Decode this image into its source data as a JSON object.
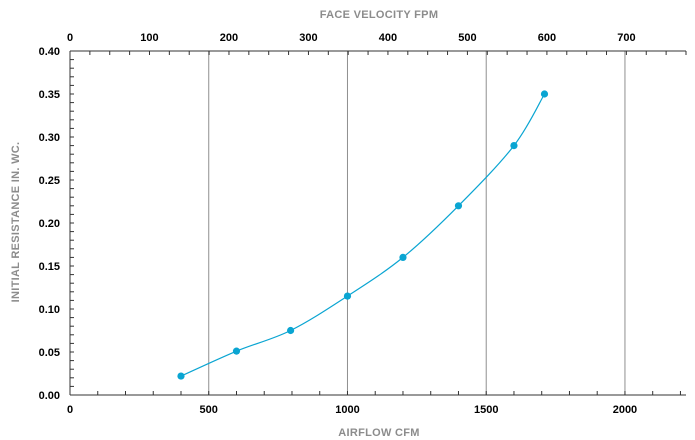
{
  "chart_data": {
    "type": "line",
    "xlabel": "AIRFLOW CFM",
    "x2label": "FACE VELOCITY FPM",
    "ylabel": "INITIAL RESISTANCE IN. WC.",
    "xlim": [
      0,
      2220
    ],
    "ylim": [
      0,
      0.4
    ],
    "x2lim": [
      0,
      775
    ],
    "x_ticks": [
      0,
      500,
      1000,
      1500,
      2000
    ],
    "x_tick_labels": [
      "0",
      "500",
      "1000",
      "1500",
      "2000"
    ],
    "x2_ticks": [
      0,
      100,
      200,
      300,
      400,
      500,
      600,
      700
    ],
    "x2_tick_labels": [
      "0",
      "100",
      "200",
      "300",
      "400",
      "500",
      "600",
      "700"
    ],
    "y_ticks": [
      0,
      0.05,
      0.1,
      0.15,
      0.2,
      0.25,
      0.3,
      0.35,
      0.4
    ],
    "y_tick_labels": [
      "0.00",
      "0.05",
      "0.10",
      "0.15",
      "0.20",
      "0.25",
      "0.30",
      "0.35",
      "0.40"
    ],
    "x_gridlines": [
      500,
      1000,
      1500,
      2000
    ],
    "series": [
      {
        "x": [
          400,
          600,
          795,
          1000,
          1200,
          1400,
          1600,
          1710
        ],
        "y": [
          0.022,
          0.051,
          0.075,
          0.115,
          0.16,
          0.22,
          0.29,
          0.35
        ]
      }
    ],
    "colors": {
      "line": "#0aa5d2",
      "grid": "#8f8f8f",
      "axis": "#333333",
      "tick_text": "#000000",
      "title_text": "#8c8c8c"
    }
  }
}
